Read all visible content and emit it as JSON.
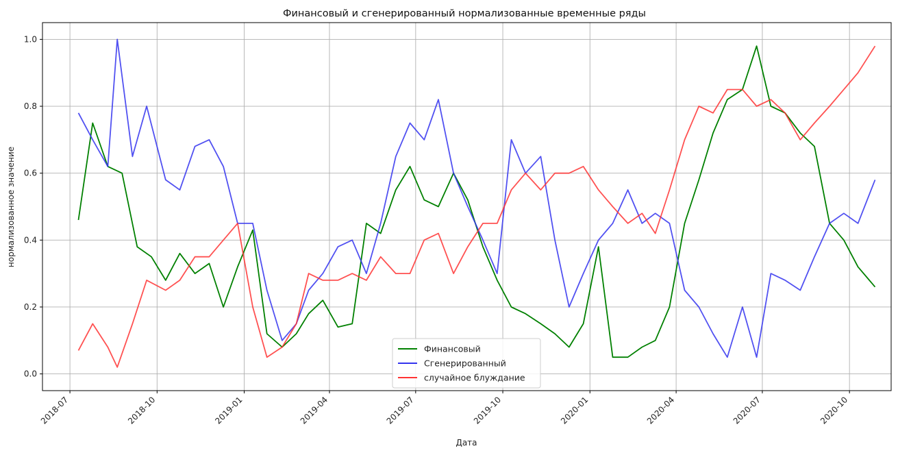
{
  "chart_data": {
    "type": "line",
    "title": "Финансовый и сгенерированный нормализованные временные ряды",
    "xlabel": "Дата",
    "ylabel": "нормализованное значение",
    "xlim": [
      "2018-06-02",
      "2020-11-14"
    ],
    "ylim": [
      -0.05,
      1.05
    ],
    "x_ticks": [
      "2018-07",
      "2018-10",
      "2019-01",
      "2019-04",
      "2019-07",
      "2019-10",
      "2020-01",
      "2020-04",
      "2020-07",
      "2020-10"
    ],
    "y_ticks": [
      0.0,
      0.2,
      0.4,
      0.6,
      0.8,
      1.0
    ],
    "y_tick_labels": [
      "0.0",
      "0.2",
      "0.4",
      "0.6",
      "0.8",
      "1.0"
    ],
    "grid": true,
    "legend": "bottom-center",
    "series": [
      {
        "name": "Финансовый",
        "color": "#008000",
        "x": [
          "2018-07-10",
          "2018-07-25",
          "2018-08-10",
          "2018-08-25",
          "2018-09-10",
          "2018-09-25",
          "2018-10-10",
          "2018-10-25",
          "2018-11-10",
          "2018-11-25",
          "2018-12-10",
          "2018-12-25",
          "2019-01-10",
          "2019-01-25",
          "2019-02-10",
          "2019-02-25",
          "2019-03-10",
          "2019-03-25",
          "2019-04-10",
          "2019-04-25",
          "2019-05-10",
          "2019-05-25",
          "2019-06-10",
          "2019-06-25",
          "2019-07-10",
          "2019-07-25",
          "2019-08-10",
          "2019-08-25",
          "2019-09-10",
          "2019-09-25",
          "2019-10-10",
          "2019-10-25",
          "2019-11-10",
          "2019-11-25",
          "2019-12-10",
          "2019-12-25",
          "2020-01-10",
          "2020-01-25",
          "2020-02-10",
          "2020-02-25",
          "2020-03-10",
          "2020-03-25",
          "2020-04-10",
          "2020-04-25",
          "2020-05-10",
          "2020-05-25",
          "2020-06-10",
          "2020-06-25",
          "2020-07-10",
          "2020-07-25",
          "2020-08-10",
          "2020-08-25",
          "2020-09-10",
          "2020-09-25",
          "2020-10-10",
          "2020-10-28"
        ],
        "values": [
          0.46,
          0.75,
          0.62,
          0.6,
          0.38,
          0.35,
          0.28,
          0.36,
          0.3,
          0.33,
          0.2,
          0.32,
          0.43,
          0.12,
          0.08,
          0.12,
          0.18,
          0.22,
          0.14,
          0.15,
          0.45,
          0.42,
          0.55,
          0.62,
          0.52,
          0.5,
          0.6,
          0.52,
          0.38,
          0.28,
          0.2,
          0.18,
          0.15,
          0.12,
          0.08,
          0.15,
          0.38,
          0.05,
          0.05,
          0.08,
          0.1,
          0.2,
          0.45,
          0.58,
          0.72,
          0.82,
          0.85,
          0.98,
          0.8,
          0.78,
          0.72,
          0.68,
          0.45,
          0.4,
          0.32,
          0.26
        ]
      },
      {
        "name": "Сгенерированный",
        "color": "#3333ee",
        "x": [
          "2018-07-10",
          "2018-07-25",
          "2018-08-10",
          "2018-08-20",
          "2018-09-05",
          "2018-09-20",
          "2018-10-10",
          "2018-10-25",
          "2018-11-10",
          "2018-11-25",
          "2018-12-10",
          "2018-12-25",
          "2019-01-10",
          "2019-01-25",
          "2019-02-10",
          "2019-02-25",
          "2019-03-10",
          "2019-03-25",
          "2019-04-10",
          "2019-04-25",
          "2019-05-10",
          "2019-05-25",
          "2019-06-10",
          "2019-06-25",
          "2019-07-10",
          "2019-07-25",
          "2019-08-10",
          "2019-08-25",
          "2019-09-10",
          "2019-09-25",
          "2019-10-10",
          "2019-10-25",
          "2019-11-10",
          "2019-11-25",
          "2019-12-10",
          "2019-12-25",
          "2020-01-10",
          "2020-01-25",
          "2020-02-10",
          "2020-02-25",
          "2020-03-10",
          "2020-03-25",
          "2020-04-10",
          "2020-04-25",
          "2020-05-10",
          "2020-05-25",
          "2020-06-10",
          "2020-06-25",
          "2020-07-10",
          "2020-07-25",
          "2020-08-10",
          "2020-08-25",
          "2020-09-10",
          "2020-09-25",
          "2020-10-10",
          "2020-10-28"
        ],
        "values": [
          0.78,
          0.7,
          0.62,
          1.0,
          0.65,
          0.8,
          0.58,
          0.55,
          0.68,
          0.7,
          0.62,
          0.45,
          0.45,
          0.25,
          0.1,
          0.15,
          0.25,
          0.3,
          0.38,
          0.4,
          0.3,
          0.45,
          0.65,
          0.75,
          0.7,
          0.82,
          0.6,
          0.5,
          0.4,
          0.3,
          0.7,
          0.6,
          0.65,
          0.4,
          0.2,
          0.3,
          0.4,
          0.45,
          0.55,
          0.45,
          0.48,
          0.45,
          0.25,
          0.2,
          0.12,
          0.05,
          0.2,
          0.05,
          0.3,
          0.28,
          0.25,
          0.35,
          0.45,
          0.48,
          0.45,
          0.58
        ]
      },
      {
        "name": "случайное блуждание",
        "color": "#ff3333",
        "x": [
          "2018-07-10",
          "2018-07-25",
          "2018-08-10",
          "2018-08-20",
          "2018-09-05",
          "2018-09-20",
          "2018-10-10",
          "2018-10-25",
          "2018-11-10",
          "2018-11-25",
          "2018-12-10",
          "2018-12-25",
          "2019-01-10",
          "2019-01-25",
          "2019-02-10",
          "2019-02-25",
          "2019-03-10",
          "2019-03-25",
          "2019-04-10",
          "2019-04-25",
          "2019-05-10",
          "2019-05-25",
          "2019-06-10",
          "2019-06-25",
          "2019-07-10",
          "2019-07-25",
          "2019-08-10",
          "2019-08-25",
          "2019-09-10",
          "2019-09-25",
          "2019-10-10",
          "2019-10-25",
          "2019-11-10",
          "2019-11-25",
          "2019-12-10",
          "2019-12-25",
          "2020-01-10",
          "2020-01-25",
          "2020-02-10",
          "2020-02-25",
          "2020-03-10",
          "2020-03-25",
          "2020-04-10",
          "2020-04-25",
          "2020-05-10",
          "2020-05-25",
          "2020-06-10",
          "2020-06-25",
          "2020-07-10",
          "2020-07-25",
          "2020-08-10",
          "2020-08-25",
          "2020-09-10",
          "2020-09-25",
          "2020-10-10",
          "2020-10-28"
        ],
        "values": [
          0.07,
          0.15,
          0.08,
          0.02,
          0.15,
          0.28,
          0.25,
          0.28,
          0.35,
          0.35,
          0.4,
          0.45,
          0.2,
          0.05,
          0.08,
          0.15,
          0.3,
          0.28,
          0.28,
          0.3,
          0.28,
          0.35,
          0.3,
          0.3,
          0.4,
          0.42,
          0.3,
          0.38,
          0.45,
          0.45,
          0.55,
          0.6,
          0.55,
          0.6,
          0.6,
          0.62,
          0.55,
          0.5,
          0.45,
          0.48,
          0.42,
          0.55,
          0.7,
          0.8,
          0.78,
          0.85,
          0.85,
          0.8,
          0.82,
          0.78,
          0.7,
          0.75,
          0.8,
          0.85,
          0.9,
          0.98
        ]
      }
    ]
  }
}
